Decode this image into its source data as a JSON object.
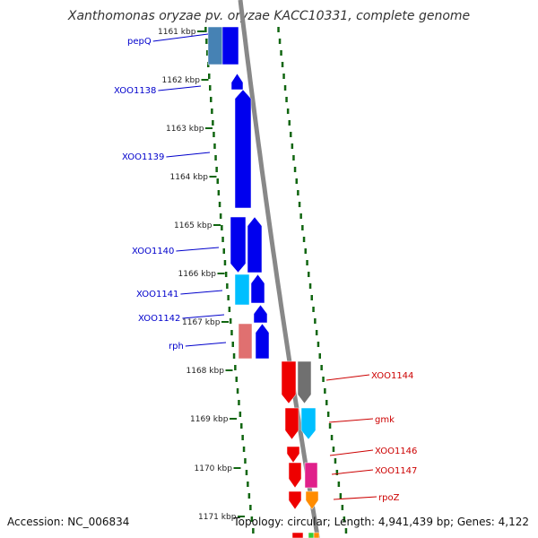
{
  "title": "Xanthomonas oryzae pv. oryzae KACC10331, complete genome",
  "accession": "Accession: NC_006834",
  "summary": "Topology: circular; Length: 4,941,439 bp; Genes: 4,122",
  "ticks": [
    "1161 kbp",
    "1162 kbp",
    "1163 kbp",
    "1164 kbp",
    "1165 kbp",
    "1166 kbp",
    "1167 kbp",
    "1168 kbp",
    "1169 kbp",
    "1170 kbp",
    "1171 kbp"
  ],
  "left_genes": [
    {
      "name": "pepQ",
      "color": "#0000cc"
    },
    {
      "name": "XOO1138",
      "color": "#0000cc"
    },
    {
      "name": "XOO1139",
      "color": "#0000cc"
    },
    {
      "name": "XOO1140",
      "color": "#0000cc"
    },
    {
      "name": "XOO1141",
      "color": "#0000cc"
    },
    {
      "name": "XOO1142",
      "color": "#0000cc"
    },
    {
      "name": "rph",
      "color": "#0000cc"
    }
  ],
  "right_genes": [
    {
      "name": "XOO1144",
      "color": "#cc0000"
    },
    {
      "name": "gmk",
      "color": "#cc0000"
    },
    {
      "name": "XOO1146",
      "color": "#cc0000"
    },
    {
      "name": "XOO1147",
      "color": "#cc0000"
    },
    {
      "name": "rpoZ",
      "color": "#cc0000"
    }
  ],
  "colors": {
    "forward_gene": "#0000ee",
    "reverse_gene": "#ee0000",
    "backbone": "#888888",
    "tick_dots": "#116611",
    "steelblue": "#4682b4",
    "cyan": "#00bfff",
    "salmon": "#e07070",
    "gray": "#707070",
    "magenta": "#e0208a",
    "orange": "#ff8c00"
  }
}
